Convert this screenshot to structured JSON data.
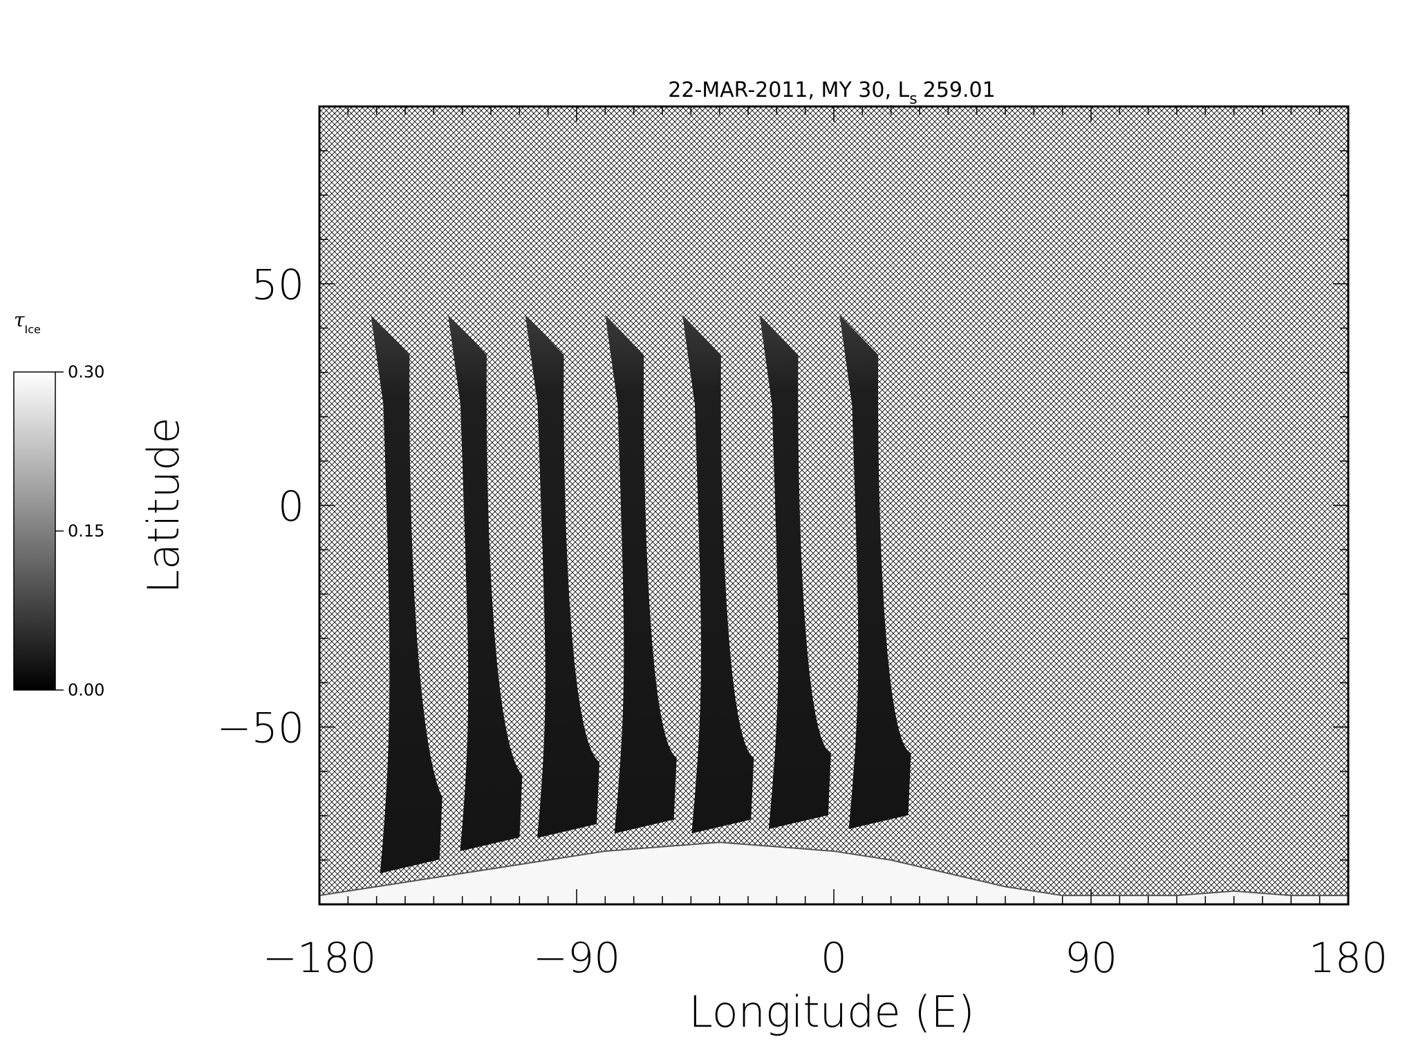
{
  "chart_data": {
    "type": "heatmap",
    "title": "22-MAR-2011, MY 30,  L",
    "title_subscript": "s",
    "title_value": "259.01",
    "xlabel": "Longitude (E)",
    "ylabel": "Latitude",
    "xlim": [
      -180,
      180
    ],
    "ylim": [
      -90,
      90
    ],
    "xticks": [
      -180,
      -90,
      0,
      90,
      180
    ],
    "xtick_labels": [
      "−180",
      "−90",
      "0",
      "90",
      "180"
    ],
    "yticks": [
      -50,
      0,
      50
    ],
    "ytick_labels": [
      "−50",
      "0",
      "50"
    ],
    "colorbar": {
      "label": "τ",
      "label_subscript": "Ice",
      "range": [
        0.0,
        0.3
      ],
      "ticks": [
        0.0,
        0.15,
        0.3
      ],
      "tick_labels": [
        "0.00",
        "0.15",
        "0.30"
      ],
      "colormap": "grayscale"
    },
    "missing_data_pattern": "crosshatch",
    "swaths": [
      {
        "top_lon": -162,
        "top_lat": 43,
        "bottom_lon": -152,
        "bottom_lat": -83
      },
      {
        "top_lon": -135,
        "top_lat": 43,
        "bottom_lon": -124,
        "bottom_lat": -78
      },
      {
        "top_lon": -108,
        "top_lat": 43,
        "bottom_lon": -97,
        "bottom_lat": -75
      },
      {
        "top_lon": -80,
        "top_lat": 43,
        "bottom_lon": -70,
        "bottom_lat": -74
      },
      {
        "top_lon": -53,
        "top_lat": 43,
        "bottom_lon": -43,
        "bottom_lat": -74
      },
      {
        "top_lon": -26,
        "top_lat": 43,
        "bottom_lon": -16,
        "bottom_lat": -73
      },
      {
        "top_lon": 2,
        "top_lat": 43,
        "bottom_lon": 12,
        "bottom_lat": -73
      }
    ],
    "polar_cap": {
      "value": 0.3,
      "boundary": [
        [
          -180,
          -88
        ],
        [
          -160,
          -86
        ],
        [
          -140,
          -84
        ],
        [
          -120,
          -82
        ],
        [
          -100,
          -80
        ],
        [
          -80,
          -78
        ],
        [
          -60,
          -77
        ],
        [
          -40,
          -76
        ],
        [
          -20,
          -77
        ],
        [
          0,
          -78
        ],
        [
          20,
          -80
        ],
        [
          40,
          -83
        ],
        [
          60,
          -86
        ],
        [
          80,
          -88
        ],
        [
          100,
          -88
        ],
        [
          120,
          -88
        ],
        [
          140,
          -87
        ],
        [
          160,
          -88
        ],
        [
          180,
          -88
        ]
      ]
    }
  }
}
